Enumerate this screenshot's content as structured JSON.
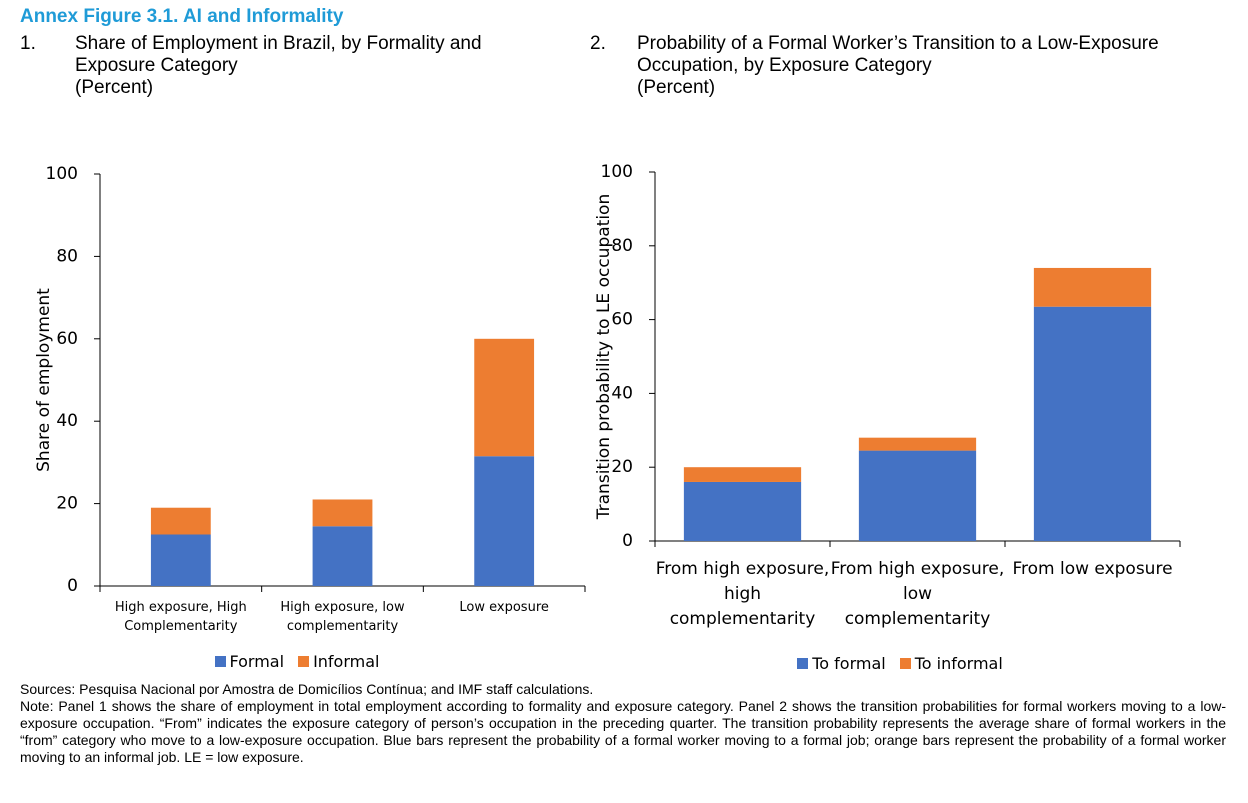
{
  "title": "Annex Figure 3.1. AI and Informality",
  "chart_data": [
    {
      "type": "bar",
      "stacked": true,
      "number": "1.",
      "title": "Share of Employment in Brazil, by Formality and Exposure Category",
      "subtitle": "(Percent)",
      "ylabel": "Share of employment",
      "categories": [
        "High exposure, High Complementarity",
        "High exposure, low complementarity",
        "Low exposure"
      ],
      "series": [
        {
          "name": "Formal",
          "color": "#4472c4",
          "values": [
            12.5,
            14.5,
            31.5
          ]
        },
        {
          "name": "Informal",
          "color": "#ed7d31",
          "values": [
            6.5,
            6.5,
            28.5
          ]
        }
      ],
      "ylim": [
        0,
        100
      ],
      "yticks": [
        0,
        20,
        40,
        60,
        80,
        100
      ],
      "legend": "bottom"
    },
    {
      "type": "bar",
      "stacked": true,
      "number": "2.",
      "title": "Probability of a Formal Worker’s Transition to a Low-Exposure Occupation, by Exposure Category",
      "subtitle": "(Percent)",
      "ylabel": "Transition probability to LE occupation",
      "categories": [
        "From high exposure, high complementarity",
        "From high exposure, low complementarity",
        "From low exposure"
      ],
      "series": [
        {
          "name": "To formal",
          "color": "#4472c4",
          "values": [
            16,
            24.5,
            63.5
          ]
        },
        {
          "name": "To informal",
          "color": "#ed7d31",
          "values": [
            4,
            3.5,
            10.5
          ]
        }
      ],
      "ylim": [
        0,
        100
      ],
      "yticks": [
        0,
        20,
        40,
        60,
        80,
        100
      ],
      "legend": "bottom"
    }
  ],
  "sources": "Sources: Pesquisa Nacional por Amostra de Domicílios Contínua; and IMF staff calculations.",
  "note": "Note: Panel 1 shows the share of employment in total employment according to formality and exposure category. Panel 2 shows the transition probabilities for formal workers moving to a low-exposure occupation. “From” indicates the exposure category of  person’s occupation in the preceding quarter. The transition probability represents the average share of formal workers in the “from” category who move to a low-exposure occupation. Blue bars represent the probability of a formal worker moving to a formal job; orange bars represent the probability of a formal worker moving to an informal job. LE = low exposure."
}
